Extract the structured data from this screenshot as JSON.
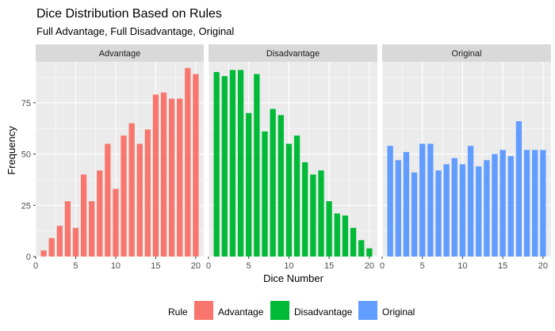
{
  "chart_data": {
    "type": "bar",
    "title": "Dice Distribution Based on Rules",
    "subtitle": "Full Advantage, Full Disadvantage, Original",
    "xlabel": "Dice Number",
    "ylabel": "Frequency",
    "xlim": [
      0,
      21
    ],
    "ylim": [
      0,
      95
    ],
    "x_ticks": [
      0,
      5,
      10,
      15,
      20
    ],
    "y_ticks": [
      0,
      25,
      50,
      75
    ],
    "grid": true,
    "legend": {
      "title": "Rule",
      "position": "bottom",
      "items": [
        {
          "label": "Advantage",
          "color": "#F8766D"
        },
        {
          "label": "Disadvantage",
          "color": "#00BA38"
        },
        {
          "label": "Original",
          "color": "#619CFF"
        }
      ]
    },
    "categories": [
      1,
      2,
      3,
      4,
      5,
      6,
      7,
      8,
      9,
      10,
      11,
      12,
      13,
      14,
      15,
      16,
      17,
      18,
      19,
      20
    ],
    "panels": [
      {
        "name": "Advantage",
        "color": "#F8766D",
        "values": [
          3,
          9,
          15,
          27,
          14,
          40,
          27,
          42,
          55,
          33,
          59,
          65,
          55,
          62,
          79,
          80,
          77,
          77,
          92,
          89
        ]
      },
      {
        "name": "Disadvantage",
        "color": "#00BA38",
        "values": [
          90,
          88,
          91,
          91,
          70,
          89,
          61,
          72,
          69,
          55,
          59,
          46,
          40,
          42,
          27,
          21,
          20,
          14,
          8,
          4
        ]
      },
      {
        "name": "Original",
        "color": "#619CFF",
        "values": [
          54,
          47,
          51,
          41,
          55,
          55,
          42,
          45,
          48,
          45,
          54,
          44,
          47,
          50,
          52,
          49,
          66,
          52,
          52,
          52
        ]
      }
    ]
  }
}
